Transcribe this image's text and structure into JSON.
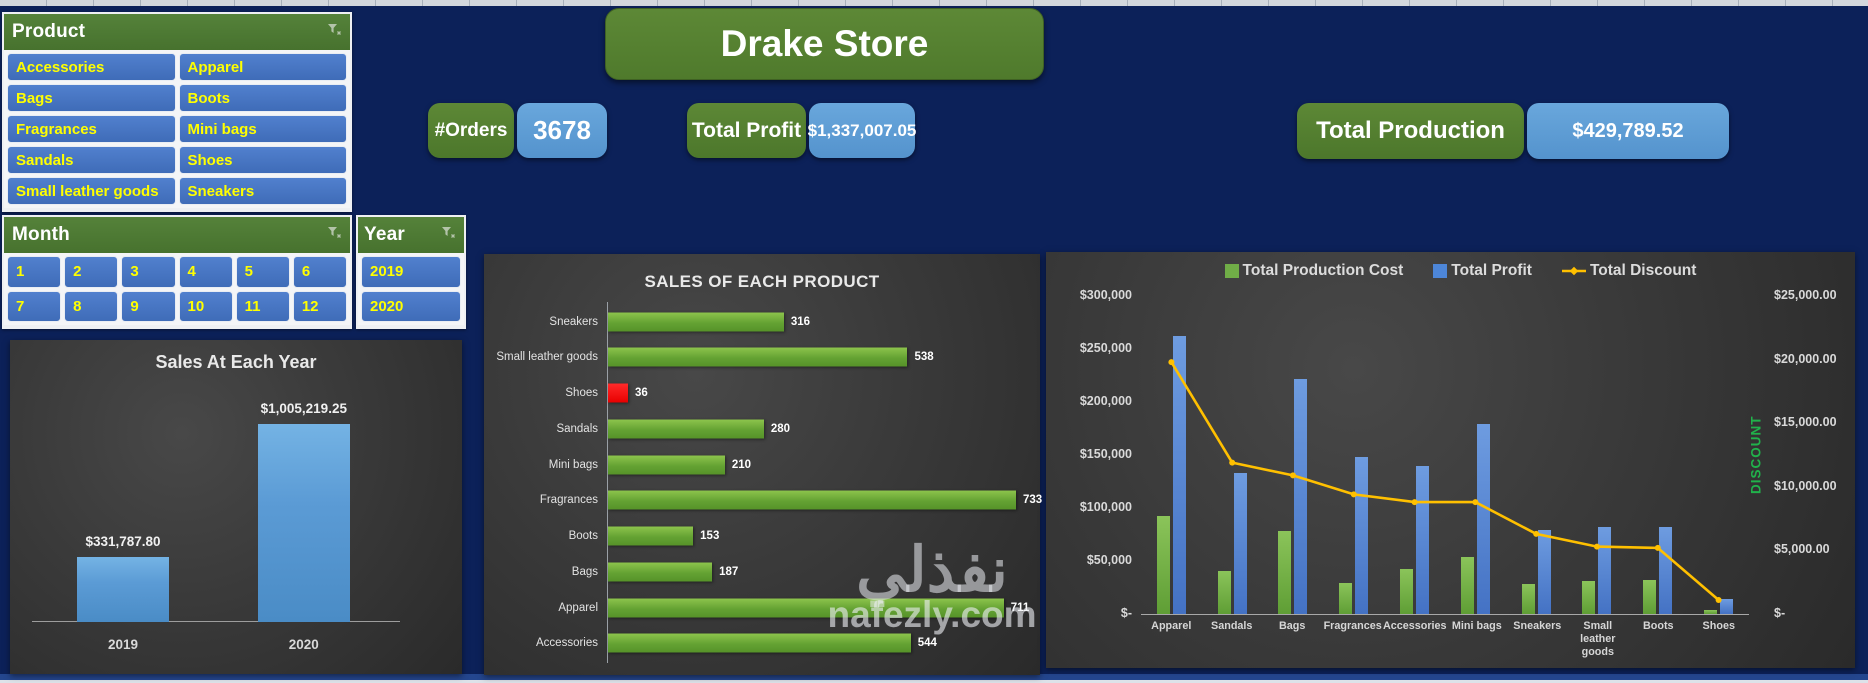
{
  "banner": {
    "title": "Drake Store"
  },
  "slicers": {
    "product": {
      "title": "Product",
      "items": [
        "Accessories",
        "Apparel",
        "Bags",
        "Boots",
        "Fragrances",
        "Mini bags",
        "Sandals",
        "Shoes",
        "Small leather goods",
        "Sneakers"
      ]
    },
    "month": {
      "title": "Month",
      "items": [
        "1",
        "2",
        "3",
        "4",
        "5",
        "6",
        "7",
        "8",
        "9",
        "10",
        "11",
        "12"
      ]
    },
    "year": {
      "title": "Year",
      "items": [
        "2019",
        "2020"
      ]
    }
  },
  "kpis": [
    {
      "label": "#Orders",
      "value": "3678"
    },
    {
      "label": "Total Profit",
      "value": "$1,337,007.05"
    },
    {
      "label": "Total Production",
      "value": "$429,789.52"
    }
  ],
  "watermark": {
    "line1": "نفذلي",
    "line2": "nafezly.com"
  },
  "colors": {
    "background_navy": "#0c2159",
    "slicer_header_green": "#4e7a32",
    "slicer_item_blue": "#4472c4",
    "slicer_text_yellow": "#ffff00",
    "kpi_green": "#557d30",
    "kpi_value_blue": "#5b9bd5",
    "bar_green": "#6aa339",
    "bar_red": "#ff0000",
    "profit_blue": "#4472c4",
    "discount_line_yellow": "#ffc000",
    "discount_axis_label_green": "#21b24b"
  },
  "chart_data": [
    {
      "type": "bar",
      "title": "Sales At Each Year",
      "categories": [
        "2019",
        "2020"
      ],
      "values": [
        331787.8,
        1005219.25
      ],
      "data_labels": [
        "$331,787.80",
        "$1,005,219.25"
      ],
      "ylim": [
        0,
        1200000
      ],
      "grid": false,
      "legend": "none"
    },
    {
      "type": "bar",
      "orientation": "horizontal",
      "title": "SALES OF EACH PRODUCT",
      "categories": [
        "Sneakers",
        "Small leather goods",
        "Shoes",
        "Sandals",
        "Mini bags",
        "Fragrances",
        "Boots",
        "Bags",
        "Apparel",
        "Accessories"
      ],
      "values": [
        316,
        538,
        36,
        280,
        210,
        733,
        153,
        187,
        711,
        544
      ],
      "bar_colors": [
        "green",
        "green",
        "red",
        "green",
        "green",
        "green",
        "green",
        "green",
        "green",
        "green"
      ],
      "xlim": [
        0,
        760
      ],
      "grid": false,
      "legend": "none"
    },
    {
      "type": "combo",
      "title": "",
      "categories": [
        "Apparel",
        "Sandals",
        "Bags",
        "Fragrances",
        "Accessories",
        "Mini bags",
        "Sneakers",
        "Small leather goods",
        "Boots",
        "Shoes"
      ],
      "series": [
        {
          "name": "Total Production Cost",
          "type": "bar",
          "color": "green",
          "values": [
            92000,
            41000,
            78000,
            29000,
            42000,
            54000,
            28000,
            31000,
            32000,
            4000
          ]
        },
        {
          "name": "Total Profit",
          "type": "bar",
          "color": "blue",
          "values": [
            262000,
            133000,
            222000,
            148000,
            140000,
            179000,
            79000,
            82000,
            82000,
            14000
          ]
        },
        {
          "name": "Total Discount",
          "type": "line",
          "color": "yellow",
          "axis": "right",
          "values": [
            19800,
            11900,
            10900,
            9400,
            8800,
            8800,
            6300,
            5300,
            5200,
            1100
          ]
        }
      ],
      "left_axis": {
        "max": 300000,
        "ticks": [
          "$300,000",
          "$250,000",
          "$200,000",
          "$150,000",
          "$100,000",
          "$50,000",
          "$-"
        ]
      },
      "right_axis": {
        "max": 25000,
        "ticks": [
          "$25,000.00",
          "$20,000.00",
          "$15,000.00",
          "$10,000.00",
          "$5,000.00",
          "$-"
        ],
        "label": "DISCOUNT"
      },
      "legend_position": "top",
      "grid": false
    }
  ]
}
